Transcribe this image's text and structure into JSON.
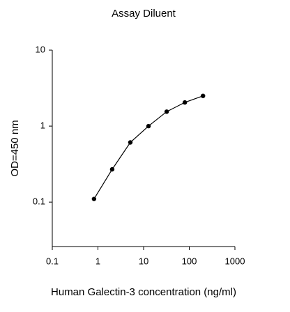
{
  "chart_data": {
    "type": "line",
    "title": "Assay Diluent",
    "x_label": "Human Galectin-3 concentration (ng/ml)",
    "y_label": "OD=450 nm",
    "x": [
      0.82,
      2.05,
      5.12,
      12.8,
      32,
      80,
      200
    ],
    "series": [
      {
        "name": "Assay Diluent",
        "color": "#000000",
        "values": [
          0.11,
          0.27,
          0.61,
          1.0,
          1.55,
          2.05,
          2.5
        ]
      }
    ],
    "xlim": [
      0.1,
      1000
    ],
    "ylim": [
      0.026,
      10
    ],
    "xticks": [
      0.1,
      1,
      10,
      100,
      1000
    ],
    "yticks": [
      0.1,
      1,
      10
    ],
    "xscale": "log",
    "yscale": "log",
    "grid": false
  }
}
